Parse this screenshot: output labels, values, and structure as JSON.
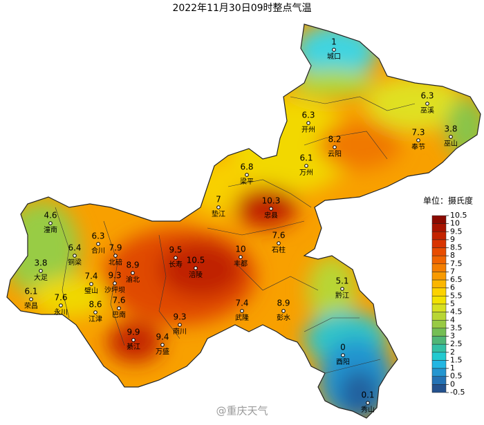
{
  "title": "2022年11月30日09时整点气温",
  "stations": [
    {
      "name": "城口",
      "value": 1
    },
    {
      "name": "巫溪",
      "value": 6.3
    },
    {
      "name": "开州",
      "value": 6.3
    },
    {
      "name": "云阳",
      "value": 8.2
    },
    {
      "name": "奉节",
      "value": 7.3
    },
    {
      "name": "巫山",
      "value": 3.8
    },
    {
      "name": "万州",
      "value": 6.1
    },
    {
      "name": "梁平",
      "value": 6.8
    },
    {
      "name": "垫江",
      "value": 7
    },
    {
      "name": "忠县",
      "value": 10.3
    },
    {
      "name": "石柱",
      "value": 7.6
    },
    {
      "name": "潼南",
      "value": 4.6
    },
    {
      "name": "合川",
      "value": 6.3
    },
    {
      "name": "铜梁",
      "value": 6.4
    },
    {
      "name": "北碚",
      "value": 7.9
    },
    {
      "name": "长寿",
      "value": 9.5
    },
    {
      "name": "丰都",
      "value": 10
    },
    {
      "name": "涪陵",
      "value": 10.5
    },
    {
      "name": "大足",
      "value": 3.8
    },
    {
      "name": "渝北",
      "value": 8.9
    },
    {
      "name": "璧山",
      "value": 7.4
    },
    {
      "name": "沙坪坝",
      "value": 9.3
    },
    {
      "name": "黔江",
      "value": 5.1
    },
    {
      "name": "荣昌",
      "value": 6.1
    },
    {
      "name": "永川",
      "value": 7.6
    },
    {
      "name": "巴南",
      "value": 7.6
    },
    {
      "name": "江津",
      "value": 8.6
    },
    {
      "name": "彭水",
      "value": 8.9
    },
    {
      "name": "武隆",
      "value": 7.4
    },
    {
      "name": "南川",
      "value": 9.3
    },
    {
      "name": "綦江",
      "value": 9.9
    },
    {
      "name": "万盛",
      "value": 9.4
    },
    {
      "name": "酉阳",
      "value": 0
    },
    {
      "name": "秀山",
      "value": 0.1
    }
  ],
  "legend": {
    "title": "单位：摄氏度",
    "ticks": [
      10.5,
      10,
      9.5,
      9,
      8.5,
      8,
      7.5,
      7,
      6.5,
      6,
      5.5,
      5,
      4.5,
      4,
      3.5,
      3,
      2.5,
      2,
      1.5,
      1,
      0.5,
      0,
      -0.5
    ],
    "colors": [
      "#8a0a00",
      "#a81400",
      "#c42400",
      "#d83400",
      "#e84c00",
      "#f06400",
      "#f47e00",
      "#f89a00",
      "#fbb600",
      "#fcd200",
      "#f2e200",
      "#d6e020",
      "#b8d634",
      "#98ca44",
      "#74be54",
      "#50b676",
      "#34c0a4",
      "#22cad0",
      "#22b6e2",
      "#2496d0",
      "#2472b4",
      "#24528e"
    ]
  },
  "watermark": "@重庆天气"
}
